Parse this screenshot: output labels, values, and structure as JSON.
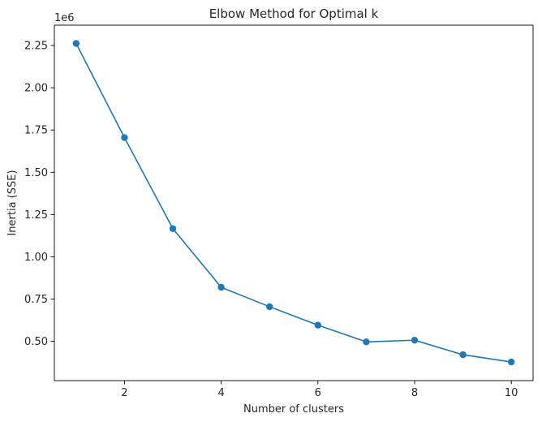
{
  "chart_data": {
    "type": "line",
    "title": "Elbow Method for Optimal k",
    "xlabel": "Number of clusters",
    "ylabel": "Inertia (SSE)",
    "y_offset_label": "1e6",
    "x": [
      1,
      2,
      3,
      4,
      5,
      6,
      7,
      8,
      9,
      10
    ],
    "series": [
      {
        "values": [
          2.262,
          1.705,
          1.167,
          0.82,
          0.705,
          0.596,
          0.497,
          0.507,
          0.421,
          0.378
        ],
        "color": "#1f77b4",
        "marker": "circle"
      }
    ],
    "xlim": [
      0.55,
      10.45
    ],
    "ylim": [
      0.2679,
      2.3702
    ],
    "x_ticks": [
      2,
      4,
      6,
      8,
      10
    ],
    "x_tick_labels": [
      "2",
      "4",
      "6",
      "8",
      "10"
    ],
    "y_ticks": [
      0.5,
      0.75,
      1.0,
      1.25,
      1.5,
      1.75,
      2.0,
      2.25
    ],
    "y_tick_labels": [
      "0.50",
      "0.75",
      "1.00",
      "1.25",
      "1.50",
      "1.75",
      "2.00",
      "2.25"
    ],
    "grid": false,
    "legend": "none"
  }
}
